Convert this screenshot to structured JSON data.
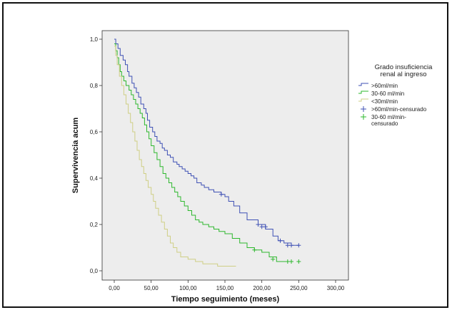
{
  "chart_data": {
    "type": "line",
    "subtype": "kaplan-meier survival curve",
    "xlabel": "Tiempo seguimiento (meses)",
    "ylabel": "Supervivencia acum",
    "xlim": [
      0,
      300
    ],
    "ylim": [
      0,
      1
    ],
    "x_ticks": [
      0,
      50,
      100,
      150,
      200,
      250,
      300
    ],
    "x_tick_labels": [
      "0,00",
      "50,00",
      "100,00",
      "150,00",
      "200,00",
      "250,00",
      "300,00"
    ],
    "y_ticks": [
      0,
      0.2,
      0.4,
      0.6,
      0.8,
      1.0
    ],
    "y_tick_labels": [
      "0,0",
      "0,2",
      "0,4",
      "0,6",
      "0,8",
      "1,0"
    ],
    "grid": false,
    "legend_position": "right",
    "legend_title": [
      "Grado insuficiencia",
      "renal al ingreso"
    ],
    "series": [
      {
        "name": ">60ml/min",
        "color": "#3f51b5",
        "x": [
          0,
          2,
          5,
          8,
          12,
          15,
          18,
          20,
          24,
          27,
          30,
          33,
          36,
          40,
          43,
          45,
          48,
          52,
          55,
          58,
          62,
          65,
          68,
          72,
          76,
          80,
          85,
          88,
          92,
          96,
          100,
          104,
          108,
          112,
          118,
          122,
          128,
          135,
          145,
          150,
          155,
          162,
          170,
          180,
          195,
          205,
          215,
          222,
          230,
          240,
          250
        ],
        "y": [
          1.0,
          0.98,
          0.96,
          0.93,
          0.91,
          0.89,
          0.86,
          0.84,
          0.81,
          0.79,
          0.77,
          0.75,
          0.72,
          0.7,
          0.68,
          0.65,
          0.62,
          0.6,
          0.58,
          0.56,
          0.55,
          0.53,
          0.52,
          0.5,
          0.49,
          0.47,
          0.46,
          0.45,
          0.44,
          0.43,
          0.42,
          0.41,
          0.4,
          0.38,
          0.37,
          0.36,
          0.35,
          0.34,
          0.33,
          0.32,
          0.3,
          0.28,
          0.25,
          0.22,
          0.2,
          0.18,
          0.15,
          0.13,
          0.12,
          0.11,
          0.11
        ]
      },
      {
        "name": "30-60 ml/min",
        "color": "#2eb82e",
        "x": [
          0,
          2,
          4,
          6,
          8,
          10,
          13,
          16,
          20,
          23,
          26,
          29,
          32,
          35,
          38,
          41,
          44,
          47,
          50,
          54,
          58,
          62,
          66,
          70,
          74,
          78,
          82,
          86,
          90,
          95,
          100,
          105,
          110,
          115,
          120,
          128,
          135,
          142,
          150,
          160,
          170,
          180,
          190,
          200,
          210,
          220,
          240
        ],
        "y": [
          0.98,
          0.95,
          0.92,
          0.89,
          0.86,
          0.84,
          0.82,
          0.8,
          0.78,
          0.76,
          0.74,
          0.72,
          0.7,
          0.68,
          0.66,
          0.63,
          0.6,
          0.57,
          0.54,
          0.51,
          0.48,
          0.45,
          0.42,
          0.4,
          0.38,
          0.36,
          0.34,
          0.32,
          0.3,
          0.28,
          0.26,
          0.24,
          0.22,
          0.21,
          0.2,
          0.19,
          0.18,
          0.17,
          0.16,
          0.14,
          0.12,
          0.1,
          0.09,
          0.08,
          0.06,
          0.04,
          0.04
        ]
      },
      {
        "name": "<30ml/min",
        "color": "#cfcf85",
        "x": [
          0,
          2,
          4,
          7,
          10,
          13,
          16,
          19,
          22,
          25,
          28,
          31,
          34,
          37,
          40,
          43,
          46,
          50,
          53,
          56,
          60,
          64,
          68,
          72,
          76,
          80,
          85,
          90,
          100,
          110,
          120,
          140,
          155,
          165
        ],
        "y": [
          0.97,
          0.93,
          0.89,
          0.84,
          0.8,
          0.76,
          0.72,
          0.68,
          0.64,
          0.6,
          0.56,
          0.52,
          0.48,
          0.45,
          0.42,
          0.39,
          0.36,
          0.33,
          0.3,
          0.27,
          0.24,
          0.21,
          0.18,
          0.15,
          0.12,
          0.1,
          0.08,
          0.06,
          0.05,
          0.04,
          0.03,
          0.02,
          0.02,
          0.02
        ]
      }
    ],
    "censored": [
      {
        "name": ">60ml/min-censurado",
        "color": "#3f51b5",
        "x": [
          145,
          195,
          200,
          205,
          225,
          235,
          240,
          250
        ],
        "y": [
          0.33,
          0.2,
          0.19,
          0.19,
          0.13,
          0.11,
          0.11,
          0.11
        ]
      },
      {
        "name": "30-60 ml/min-censurado",
        "color": "#2eb82e",
        "x": [
          190,
          215,
          235,
          240,
          250
        ],
        "y": [
          0.09,
          0.05,
          0.04,
          0.04,
          0.04
        ]
      }
    ],
    "legend_entries": [
      {
        "kind": "line",
        "label": ">60ml/min",
        "color": "#3f51b5"
      },
      {
        "kind": "line",
        "label": "30-60 ml/min",
        "color": "#2eb82e"
      },
      {
        "kind": "line",
        "label": "<30ml/min",
        "color": "#cfcf85"
      },
      {
        "kind": "cross",
        "label": ">60ml/min-censurado",
        "color": "#3f51b5"
      },
      {
        "kind": "cross",
        "label": [
          "30-60 ml/min-",
          "censurado"
        ],
        "color": "#2eb82e"
      }
    ],
    "colors": {
      "plot_background": "#ededed",
      "axis": "#333333"
    }
  }
}
